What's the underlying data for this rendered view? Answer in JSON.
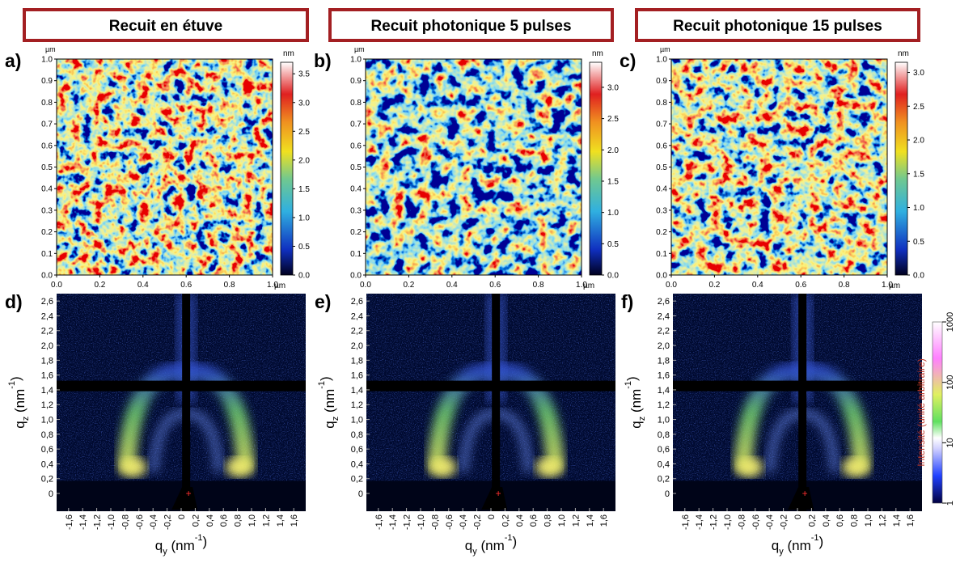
{
  "headers": [
    "Recuit en étuve",
    "Recuit photonique 5 pulses",
    "Recuit photonique 15 pulses"
  ],
  "afm": {
    "unit": "µm",
    "colorbar_unit": "nm",
    "xlim": [
      0,
      1
    ],
    "ylim": [
      0,
      1
    ],
    "xticks": [
      {
        "value": 0,
        "label": "0.0"
      },
      0.2,
      0.4,
      0.6,
      0.8,
      {
        "value": 1,
        "label": "1.0"
      }
    ],
    "yticks": [
      {
        "value": 0,
        "label": "0.0"
      },
      0.1,
      0.2,
      0.3,
      0.4,
      0.5,
      0.6,
      0.7,
      0.8,
      0.9,
      {
        "value": 1,
        "label": "1.0"
      }
    ],
    "panels": [
      {
        "label": "a)",
        "clim": [
          0,
          3.7
        ],
        "cticks": [
          {
            "value": 0,
            "label": "0.0"
          },
          0.5,
          {
            "value": 1,
            "label": "1.0"
          },
          1.5,
          {
            "value": 2,
            "label": "2.0"
          },
          2.5,
          {
            "value": 3,
            "label": "3.0"
          },
          3.5
        ]
      },
      {
        "label": "b)",
        "clim": [
          0,
          3.4
        ],
        "cticks": [
          {
            "value": 0,
            "label": "0.0"
          },
          0.5,
          {
            "value": 1,
            "label": "1.0"
          },
          1.5,
          {
            "value": 2,
            "label": "2.0"
          },
          2.5,
          {
            "value": 3,
            "label": "3.0"
          }
        ]
      },
      {
        "label": "c)",
        "clim": [
          0,
          3.15
        ],
        "cticks": [
          {
            "value": 0,
            "label": "0.0"
          },
          0.5,
          {
            "value": 1,
            "label": "1.0"
          },
          1.5,
          {
            "value": 2,
            "label": "2.0"
          },
          2.5,
          {
            "value": 3,
            "label": "3.0"
          }
        ]
      }
    ]
  },
  "gisaxs": {
    "xlim": [
      -1.77,
      1.77
    ],
    "ylim": [
      -0.24,
      2.7
    ],
    "xticks": [
      {
        "value": -1.6,
        "label": "-1,6"
      },
      {
        "value": -1.4,
        "label": "-1,4"
      },
      {
        "value": -1.2,
        "label": "-1,2"
      },
      {
        "value": -1,
        "label": "-1,0"
      },
      {
        "value": -0.8,
        "label": "-0,8"
      },
      {
        "value": -0.6,
        "label": "-0,6"
      },
      {
        "value": -0.4,
        "label": "-0,4"
      },
      {
        "value": -0.2,
        "label": "-0,2"
      },
      0,
      {
        "value": 0.2,
        "label": "0,2"
      },
      {
        "value": 0.4,
        "label": "0,4"
      },
      {
        "value": 0.6,
        "label": "0,6"
      },
      {
        "value": 0.8,
        "label": "0,8"
      },
      {
        "value": 1,
        "label": "1,0"
      },
      {
        "value": 1.2,
        "label": "1,2"
      },
      {
        "value": 1.4,
        "label": "1,4"
      },
      {
        "value": 1.6,
        "label": "1,6"
      }
    ],
    "yticks": [
      0,
      {
        "value": 0.2,
        "label": "0,2"
      },
      {
        "value": 0.4,
        "label": "0,4"
      },
      {
        "value": 0.6,
        "label": "0,6"
      },
      {
        "value": 0.8,
        "label": "0,8"
      },
      {
        "value": 1,
        "label": "1,0"
      },
      {
        "value": 1.2,
        "label": "1,2"
      },
      {
        "value": 1.4,
        "label": "1,4"
      },
      {
        "value": 1.6,
        "label": "1,6"
      },
      {
        "value": 1.8,
        "label": "1,8"
      },
      {
        "value": 2,
        "label": "2,0"
      },
      {
        "value": 2.2,
        "label": "2,2"
      },
      {
        "value": 2.4,
        "label": "2,4"
      },
      {
        "value": 2.6,
        "label": "2,6"
      }
    ],
    "xlabel": [
      "q",
      "y",
      " (nm",
      "-1",
      ")"
    ],
    "ylabel": [
      "q",
      "z",
      " (nm",
      "-1",
      ")"
    ],
    "panels": [
      {
        "label": "d)"
      },
      {
        "label": "e)"
      },
      {
        "label": "f)"
      }
    ],
    "colorbar": {
      "label": "Intensité (unité arbitraire)",
      "lim": [
        1,
        1000
      ],
      "log": true,
      "ticks": [
        1,
        10,
        100,
        1000
      ]
    }
  }
}
